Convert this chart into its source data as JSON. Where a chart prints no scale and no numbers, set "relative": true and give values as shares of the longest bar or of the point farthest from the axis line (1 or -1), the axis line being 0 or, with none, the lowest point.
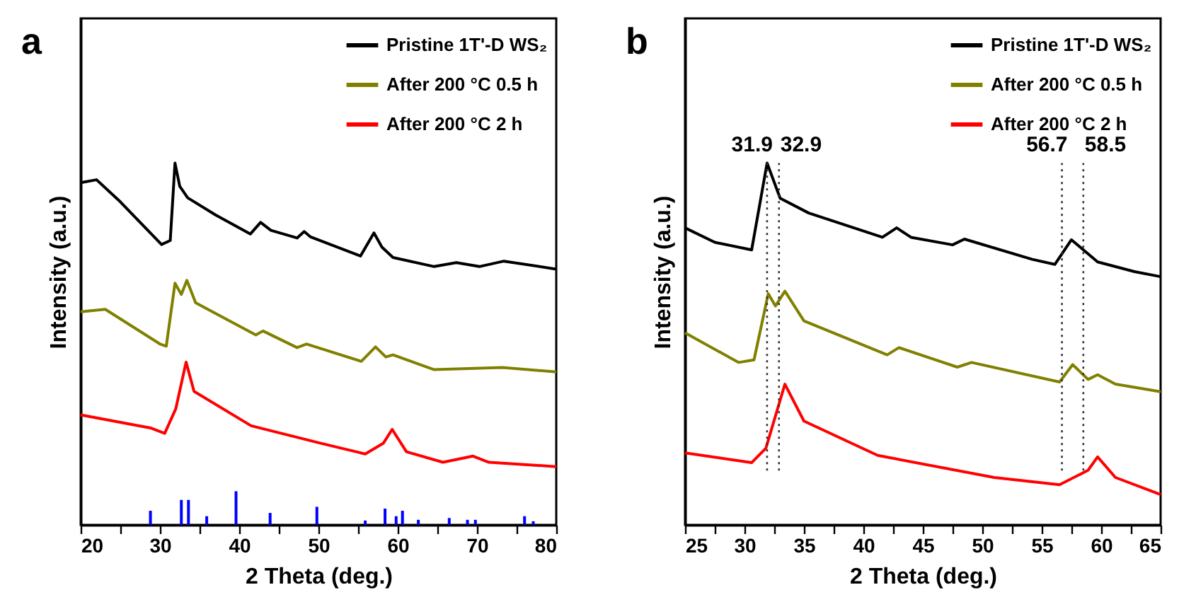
{
  "chart_data": [
    {
      "type": "line",
      "title": "a",
      "xlabel": "2 Theta (deg.)",
      "ylabel": "Intensity (a.u.)",
      "relative": true,
      "xlim": [
        20,
        80
      ],
      "xticks": [
        20,
        {
          "value": 25,
          "label": null
        },
        30,
        {
          "value": 35,
          "label": null
        },
        40,
        {
          "value": 45,
          "label": null
        },
        50,
        {
          "value": 55,
          "label": null
        },
        60,
        {
          "value": 65,
          "label": null
        },
        70,
        {
          "value": 75,
          "label": null
        },
        80
      ],
      "legend": "top right",
      "grid": false,
      "marker": "none",
      "line_style": "solid",
      "series": [
        {
          "name": "Pristine 1T'-D WS₂",
          "color": "#000000",
          "x": [
            20,
            22,
            25,
            30.2,
            31.3,
            31.9,
            32.5,
            33.5,
            37,
            41.4,
            42.7,
            44,
            47.3,
            48.2,
            49,
            55.3,
            57,
            58,
            59.4,
            64.6,
            67.4,
            70.3,
            73.4,
            80
          ],
          "values": [
            0.946,
            0.954,
            0.893,
            0.775,
            0.786,
            1.0,
            0.936,
            0.904,
            0.857,
            0.804,
            0.836,
            0.814,
            0.793,
            0.811,
            0.796,
            0.743,
            0.807,
            0.768,
            0.739,
            0.714,
            0.725,
            0.714,
            0.729,
            0.707
          ]
        },
        {
          "name": "After 200 °C 0.5 h",
          "color": "#808000",
          "x": [
            20,
            23.1,
            30,
            30.8,
            31.9,
            32.7,
            33.4,
            34.5,
            42.1,
            43,
            47.3,
            48.5,
            55.4,
            57.2,
            58.5,
            59.4,
            64.6,
            73.2,
            80
          ],
          "values": [
            0.589,
            0.596,
            0.5,
            0.494,
            0.668,
            0.637,
            0.676,
            0.614,
            0.525,
            0.536,
            0.49,
            0.5,
            0.452,
            0.492,
            0.464,
            0.47,
            0.429,
            0.435,
            0.423
          ]
        },
        {
          "name": "After 200 °C 2 h",
          "color": "#ff0000",
          "x": [
            20,
            28.8,
            30.6,
            32,
            33.3,
            34.3,
            41.5,
            50.2,
            55.9,
            58.2,
            59.3,
            61.1,
            65.7,
            69.5,
            71.5,
            80
          ],
          "values": [
            0.304,
            0.268,
            0.253,
            0.321,
            0.45,
            0.369,
            0.274,
            0.226,
            0.196,
            0.226,
            0.264,
            0.202,
            0.173,
            0.19,
            0.173,
            0.161
          ]
        },
        {
          "type": "bar",
          "color": "#0000ff",
          "x": [
            28.8,
            32.7,
            33.6,
            35.9,
            39.6,
            43.9,
            49.8,
            55.9,
            58.4,
            59.8,
            60.6,
            62.6,
            66.5,
            68.8,
            69.8,
            76,
            77.1
          ],
          "values": [
            0.039,
            0.069,
            0.069,
            0.024,
            0.093,
            0.033,
            0.05,
            0.012,
            0.045,
            0.024,
            0.039,
            0.014,
            0.019,
            0.014,
            0.014,
            0.024,
            0.01
          ]
        }
      ]
    },
    {
      "type": "line",
      "title": "b",
      "xlabel": "2 Theta (deg.)",
      "ylabel": "Intensity (a.u.)",
      "relative": true,
      "xlim": [
        25,
        65
      ],
      "xticks": [
        25,
        {
          "value": 27.5,
          "label": null
        },
        30,
        {
          "value": 32.5,
          "label": null
        },
        35,
        {
          "value": 37.5,
          "label": null
        },
        40,
        {
          "value": 42.5,
          "label": null
        },
        45,
        {
          "value": 47.5,
          "label": null
        },
        50,
        {
          "value": 52.5,
          "label": null
        },
        55,
        {
          "value": 57.5,
          "label": null
        },
        60,
        {
          "value": 62.5,
          "label": null
        },
        65
      ],
      "legend": "top right",
      "grid": false,
      "marker": "none",
      "line_style": "solid",
      "ref_lines": [
        {
          "axis": "x",
          "value": 31.9,
          "label": "31.9",
          "line_style": "dotted"
        },
        {
          "axis": "x",
          "value": 32.9,
          "label": "32.9",
          "line_style": "dotted"
        },
        {
          "axis": "x",
          "value": 56.7,
          "label": "56.7",
          "line_style": "dotted"
        },
        {
          "axis": "x",
          "value": 58.5,
          "label": "58.5",
          "line_style": "dotted"
        }
      ],
      "series": [
        {
          "name": "Pristine 1T'-D WS₂",
          "color": "#000000",
          "x": [
            25,
            27.5,
            30.6,
            31.9,
            33,
            35.4,
            41.6,
            42.8,
            44,
            47.5,
            48.5,
            54.2,
            56.1,
            57.5,
            59.7,
            62.8,
            65
          ],
          "values": [
            0.821,
            0.781,
            0.76,
            1.0,
            0.903,
            0.862,
            0.795,
            0.821,
            0.795,
            0.774,
            0.79,
            0.734,
            0.72,
            0.788,
            0.727,
            0.7,
            0.686
          ]
        },
        {
          "name": "After 200 °C 0.5 h",
          "color": "#808000",
          "x": [
            25,
            29.5,
            30.8,
            32,
            32.6,
            33.4,
            35,
            42,
            43,
            47.9,
            49.1,
            56.5,
            57.6,
            58.9,
            59.7,
            61.2,
            65
          ],
          "values": [
            0.531,
            0.449,
            0.456,
            0.639,
            0.605,
            0.646,
            0.564,
            0.47,
            0.49,
            0.436,
            0.449,
            0.395,
            0.443,
            0.402,
            0.415,
            0.389,
            0.368
          ]
        },
        {
          "name": "After 200 °C 2 h",
          "color": "#ff0000",
          "x": [
            25,
            30.6,
            31.8,
            33.4,
            35,
            41.2,
            51,
            56.5,
            58.9,
            59.7,
            61.2,
            65
          ],
          "values": [
            0.199,
            0.172,
            0.212,
            0.389,
            0.287,
            0.192,
            0.131,
            0.111,
            0.151,
            0.188,
            0.131,
            0.084
          ]
        }
      ]
    }
  ]
}
